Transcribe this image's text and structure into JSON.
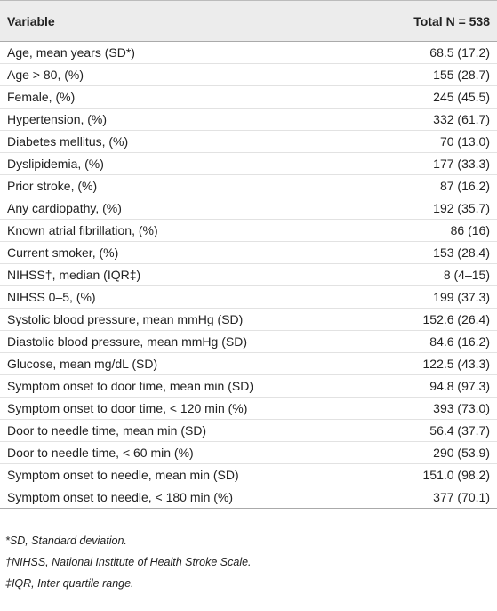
{
  "table": {
    "header": [
      "Variable",
      "Total N = 538"
    ],
    "rows": [
      [
        "Age, mean years (SD*)",
        "68.5 (17.2)"
      ],
      [
        "Age > 80, (%)",
        "155 (28.7)"
      ],
      [
        "Female, (%)",
        "245 (45.5)"
      ],
      [
        "Hypertension, (%)",
        "332 (61.7)"
      ],
      [
        "Diabetes mellitus, (%)",
        "70 (13.0)"
      ],
      [
        "Dyslipidemia, (%)",
        "177 (33.3)"
      ],
      [
        "Prior stroke, (%)",
        "87 (16.2)"
      ],
      [
        "Any cardiopathy, (%)",
        "192 (35.7)"
      ],
      [
        "Known atrial fibrillation, (%)",
        "86 (16)"
      ],
      [
        "Current smoker, (%)",
        "153 (28.4)"
      ],
      [
        "NIHSS†, median (IQR‡)",
        "8 (4–15)"
      ],
      [
        "NIHSS 0–5, (%)",
        "199 (37.3)"
      ],
      [
        "Systolic blood pressure, mean mmHg (SD)",
        "152.6 (26.4)"
      ],
      [
        "Diastolic blood pressure, mean mmHg (SD)",
        "84.6 (16.2)"
      ],
      [
        "Glucose, mean mg/dL (SD)",
        "122.5 (43.3)"
      ],
      [
        "Symptom onset to door time, mean min (SD)",
        "94.8 (97.3)"
      ],
      [
        "Symptom onset to door time, < 120 min (%)",
        "393 (73.0)"
      ],
      [
        "Door to needle time, mean min (SD)",
        "56.4 (37.7)"
      ],
      [
        "Door to needle time, < 60 min (%)",
        "290 (53.9)"
      ],
      [
        "Symptom onset to needle, mean min (SD)",
        "151.0 (98.2)"
      ],
      [
        "Symptom onset to needle, < 180 min (%)",
        "377 (70.1)"
      ]
    ],
    "footnotes": [
      "*SD, Standard deviation.",
      "†NIHSS, National Institute of Health Stroke Scale.",
      "‡IQR, Inter quartile range."
    ]
  }
}
